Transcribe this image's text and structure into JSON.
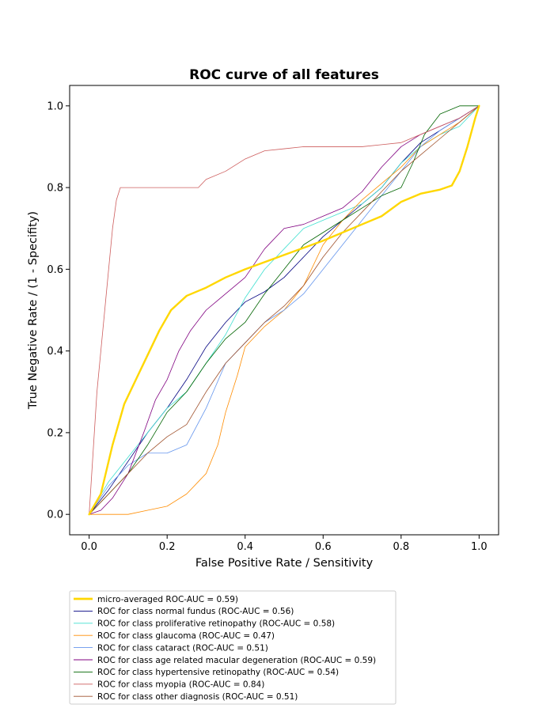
{
  "chart_data": {
    "type": "line",
    "title": "ROC curve of all features",
    "xlabel": "False Positive Rate / Sensitivity",
    "ylabel": "True Negative Rate / (1 - Specifity)",
    "xlim": [
      -0.05,
      1.05
    ],
    "ylim": [
      -0.05,
      1.05
    ],
    "xticks": [
      0.0,
      0.2,
      0.4,
      0.6,
      0.8,
      1.0
    ],
    "yticks": [
      0.0,
      0.2,
      0.4,
      0.6,
      0.8,
      1.0
    ],
    "tick_labels": [
      "0.0",
      "0.2",
      "0.4",
      "0.6",
      "0.8",
      "1.0"
    ],
    "grid": false,
    "legend_position": "below-left",
    "series": [
      {
        "name": "micro-averaged ROC-AUC = 0.59)",
        "color": "#FFD700",
        "width": 3,
        "x": [
          0,
          0.03,
          0.06,
          0.09,
          0.12,
          0.15,
          0.18,
          0.21,
          0.25,
          0.3,
          0.35,
          0.4,
          0.5,
          0.6,
          0.7,
          0.75,
          0.8,
          0.85,
          0.9,
          0.93,
          0.95,
          0.97,
          0.99,
          1.0
        ],
        "y": [
          0,
          0.05,
          0.17,
          0.27,
          0.33,
          0.39,
          0.45,
          0.5,
          0.535,
          0.555,
          0.58,
          0.6,
          0.635,
          0.67,
          0.71,
          0.73,
          0.765,
          0.785,
          0.795,
          0.805,
          0.84,
          0.9,
          0.97,
          1.0
        ]
      },
      {
        "name": "ROC for class normal fundus (ROC-AUC = 0.56)",
        "color": "#000080",
        "width": 1,
        "x": [
          0,
          0.05,
          0.1,
          0.15,
          0.2,
          0.25,
          0.3,
          0.35,
          0.4,
          0.45,
          0.5,
          0.55,
          0.6,
          0.65,
          0.7,
          0.75,
          0.8,
          0.85,
          0.9,
          0.95,
          1.0
        ],
        "y": [
          0,
          0.06,
          0.13,
          0.2,
          0.26,
          0.33,
          0.41,
          0.47,
          0.52,
          0.545,
          0.58,
          0.63,
          0.68,
          0.72,
          0.76,
          0.8,
          0.86,
          0.91,
          0.94,
          0.97,
          1.0
        ]
      },
      {
        "name": "ROC for class proliferative retinopathy (ROC-AUC = 0.58)",
        "color": "#40E0D0",
        "width": 1,
        "x": [
          0,
          0.05,
          0.1,
          0.15,
          0.2,
          0.25,
          0.3,
          0.35,
          0.4,
          0.45,
          0.5,
          0.55,
          0.6,
          0.7,
          0.75,
          0.8,
          0.85,
          0.9,
          0.95,
          1.0
        ],
        "y": [
          0,
          0.08,
          0.14,
          0.2,
          0.26,
          0.3,
          0.37,
          0.44,
          0.53,
          0.6,
          0.65,
          0.7,
          0.72,
          0.76,
          0.8,
          0.86,
          0.9,
          0.93,
          0.95,
          1.0
        ]
      },
      {
        "name": "ROC for class glaucoma (ROC-AUC = 0.47)",
        "color": "#FF8C00",
        "width": 1,
        "x": [
          0,
          0.1,
          0.15,
          0.2,
          0.25,
          0.3,
          0.33,
          0.35,
          0.38,
          0.4,
          0.45,
          0.5,
          0.55,
          0.6,
          0.65,
          0.7,
          0.75,
          0.8,
          0.85,
          0.9,
          0.95,
          1.0
        ],
        "y": [
          0,
          0.0,
          0.01,
          0.02,
          0.05,
          0.1,
          0.17,
          0.25,
          0.34,
          0.41,
          0.46,
          0.5,
          0.56,
          0.66,
          0.72,
          0.77,
          0.81,
          0.85,
          0.9,
          0.93,
          0.96,
          1.0
        ]
      },
      {
        "name": "ROC for class cataract (ROC-AUC = 0.51)",
        "color": "#6495ED",
        "width": 1,
        "x": [
          0,
          0.05,
          0.1,
          0.15,
          0.2,
          0.25,
          0.3,
          0.35,
          0.4,
          0.45,
          0.5,
          0.55,
          0.6,
          0.65,
          0.7,
          0.75,
          0.8,
          0.85,
          0.9,
          0.95,
          1.0
        ],
        "y": [
          0,
          0.07,
          0.12,
          0.15,
          0.15,
          0.17,
          0.26,
          0.37,
          0.42,
          0.47,
          0.5,
          0.54,
          0.6,
          0.66,
          0.72,
          0.78,
          0.84,
          0.9,
          0.94,
          0.97,
          1.0
        ]
      },
      {
        "name": "ROC for class age related macular degeneration (ROC-AUC = 0.59)",
        "color": "#800080",
        "width": 1,
        "x": [
          0,
          0.03,
          0.06,
          0.1,
          0.14,
          0.17,
          0.2,
          0.23,
          0.26,
          0.3,
          0.35,
          0.4,
          0.45,
          0.5,
          0.55,
          0.6,
          0.65,
          0.7,
          0.75,
          0.8,
          0.85,
          0.9,
          0.95,
          1.0
        ],
        "y": [
          0,
          0.01,
          0.04,
          0.1,
          0.2,
          0.28,
          0.33,
          0.4,
          0.45,
          0.5,
          0.54,
          0.58,
          0.65,
          0.7,
          0.71,
          0.73,
          0.75,
          0.79,
          0.85,
          0.9,
          0.93,
          0.95,
          0.97,
          1.0
        ]
      },
      {
        "name": "ROC for class hypertensive retinopathy (ROC-AUC = 0.54)",
        "color": "#006400",
        "width": 1,
        "x": [
          0,
          0.05,
          0.1,
          0.15,
          0.2,
          0.25,
          0.3,
          0.35,
          0.4,
          0.45,
          0.5,
          0.55,
          0.6,
          0.65,
          0.7,
          0.75,
          0.8,
          0.83,
          0.86,
          0.9,
          0.95,
          1.0
        ],
        "y": [
          0,
          0.05,
          0.1,
          0.17,
          0.25,
          0.3,
          0.37,
          0.43,
          0.47,
          0.54,
          0.6,
          0.66,
          0.69,
          0.72,
          0.75,
          0.78,
          0.8,
          0.86,
          0.93,
          0.98,
          1.0,
          1.0
        ]
      },
      {
        "name": "ROC for class myopia (ROC-AUC = 0.84)",
        "color": "#CD5C5C",
        "width": 1,
        "x": [
          0,
          0.01,
          0.02,
          0.03,
          0.04,
          0.05,
          0.06,
          0.07,
          0.08,
          0.15,
          0.2,
          0.28,
          0.3,
          0.35,
          0.4,
          0.45,
          0.5,
          0.55,
          0.6,
          0.65,
          0.7,
          0.75,
          0.8,
          0.85,
          0.9,
          0.95,
          1.0
        ],
        "y": [
          0,
          0.15,
          0.3,
          0.4,
          0.5,
          0.6,
          0.7,
          0.77,
          0.8,
          0.8,
          0.8,
          0.8,
          0.82,
          0.84,
          0.87,
          0.89,
          0.895,
          0.9,
          0.9,
          0.9,
          0.9,
          0.905,
          0.91,
          0.93,
          0.95,
          0.97,
          1.0
        ]
      },
      {
        "name": "ROC for class other diagnosis (ROC-AUC = 0.51)",
        "color": "#A0522D",
        "width": 1,
        "x": [
          0,
          0.05,
          0.1,
          0.15,
          0.2,
          0.25,
          0.3,
          0.35,
          0.4,
          0.45,
          0.5,
          0.55,
          0.6,
          0.65,
          0.7,
          0.75,
          0.8,
          0.85,
          0.9,
          0.95,
          1.0
        ],
        "y": [
          0,
          0.05,
          0.1,
          0.15,
          0.19,
          0.22,
          0.3,
          0.37,
          0.42,
          0.47,
          0.51,
          0.56,
          0.63,
          0.69,
          0.74,
          0.79,
          0.84,
          0.88,
          0.92,
          0.96,
          1.0
        ]
      }
    ]
  }
}
